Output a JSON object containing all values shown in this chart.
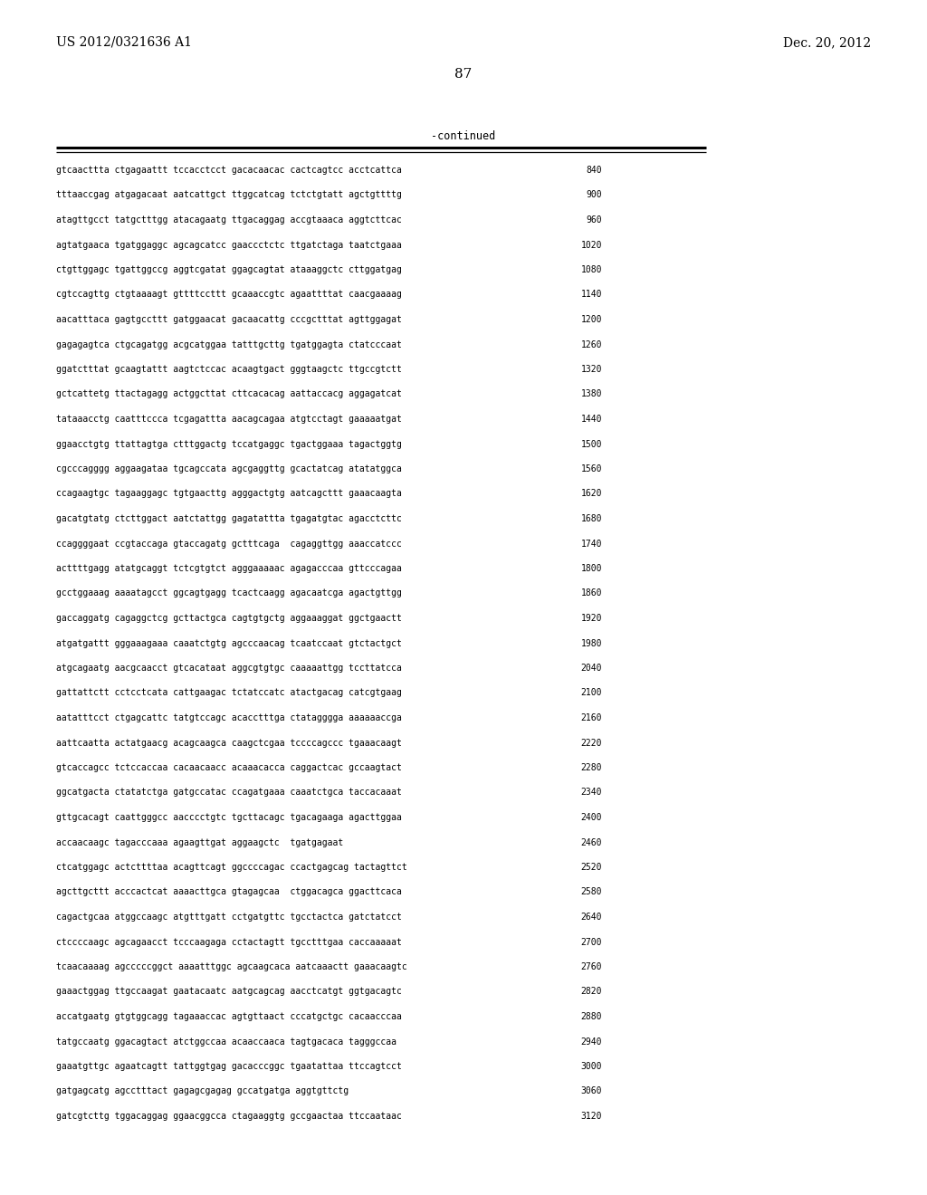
{
  "header_left": "US 2012/0321636 A1",
  "header_right": "Dec. 20, 2012",
  "page_number": "87",
  "continued_label": "-continued",
  "background_color": "#ffffff",
  "text_color": "#000000",
  "sequence_lines": [
    [
      "gtcaacttta ctgagaattt tccacctcct gacacaacac cactcagtcc acctcattca",
      "840"
    ],
    [
      "tttaaccgag atgagacaat aatcattgct ttggcatcag tctctgtatt agctgttttg",
      "900"
    ],
    [
      "atagttgcct tatgctttgg atacagaatg ttgacaggag accgtaaaca aggtcttcac",
      "960"
    ],
    [
      "agtatgaaca tgatggaggc agcagcatcc gaaccctctc ttgatctaga taatctgaaa",
      "1020"
    ],
    [
      "ctgttggagc tgattggccg aggtcgatat ggagcagtat ataaaggctc cttggatgag",
      "1080"
    ],
    [
      "cgtccagttg ctgtaaaagt gttttccttt gcaaaccgtc agaattttat caacgaaaag",
      "1140"
    ],
    [
      "aacatttaca gagtgccttt gatggaacat gacaacattg cccgctttat agttggagat",
      "1200"
    ],
    [
      "gagagagtca ctgcagatgg acgcatggaa tatttgcttg tgatggagta ctatcccaat",
      "1260"
    ],
    [
      "ggatctttat gcaagtattt aagtctccac acaagtgact gggtaagctc ttgccgtctt",
      "1320"
    ],
    [
      "gctcattetg ttactagagg actggcttat cttcacacag aattaccacg aggagatcat",
      "1380"
    ],
    [
      "tataaacctg caatttccca tcgagattta aacagcagaa atgtcctagt gaaaaatgat",
      "1440"
    ],
    [
      "ggaacctgtg ttattagtga ctttggactg tccatgaggc tgactggaaa tagactggtg",
      "1500"
    ],
    [
      "cgcccagggg aggaagataa tgcagccata agcgaggttg gcactatcag atatatggca",
      "1560"
    ],
    [
      "ccagaagtgc tagaaggagc tgtgaacttg agggactgtg aatcagcttt gaaacaagta",
      "1620"
    ],
    [
      "gacatgtatg ctcttggact aatctattgg gagatattta tgagatgtac agacctcttc",
      "1680"
    ],
    [
      "ccaggggaat ccgtaccaga gtaccagatg gctttcaga  cagaggttgg aaaccatccc",
      "1740"
    ],
    [
      "acttttgagg atatgcaggt tctcgtgtct agggaaaaac agagacccaa gttcccagaa",
      "1800"
    ],
    [
      "gcctggaaag aaaatagcct ggcagtgagg tcactcaagg agacaatcga agactgttgg",
      "1860"
    ],
    [
      "gaccaggatg cagaggctcg gcttactgca cagtgtgctg aggaaaggat ggctgaactt",
      "1920"
    ],
    [
      "atgatgattt gggaaagaaa caaatctgtg agcccaacag tcaatccaat gtctactgct",
      "1980"
    ],
    [
      "atgcagaatg aacgcaacct gtcacataat aggcgtgtgc caaaaattgg tccttatcca",
      "2040"
    ],
    [
      "gattattctt cctcctcata cattgaagac tctatccatc atactgacag catcgtgaag",
      "2100"
    ],
    [
      "aatatttcct ctgagcattc tatgtccagc acacctttga ctatagggga aaaaaaccga",
      "2160"
    ],
    [
      "aattcaatta actatgaacg acagcaagca caagctcgaa tccccagccc tgaaacaagt",
      "2220"
    ],
    [
      "gtcaccagcc tctccaccaa cacaacaacc acaaacacca caggactcac gccaagtact",
      "2280"
    ],
    [
      "ggcatgacta ctatatctga gatgccatac ccagatgaaa caaatctgca taccacaaat",
      "2340"
    ],
    [
      "gttgcacagt caattgggcc aacccctgtc tgcttacagc tgacagaaga agacttggaa",
      "2400"
    ],
    [
      "accaacaagc tagacccaaa agaagttgat aggaagctc  tgatgagaat",
      "2460"
    ],
    [
      "ctcatggagc actcttttaa acagttcagt ggccccagac ccactgagcag tactagttct",
      "2520"
    ],
    [
      "agcttgcttt acccactcat aaaacttgca gtagagcaa  ctggacagca ggacttcaca",
      "2580"
    ],
    [
      "cagactgcaa atggccaagc atgtttgatt cctgatgttc tgcctactca gatctatcct",
      "2640"
    ],
    [
      "ctccccaagc agcagaacct tcccaagaga cctactagtt tgcctttgaa caccaaaaat",
      "2700"
    ],
    [
      "tcaacaaaag agcccccggct aaaatttggc agcaagcaca aatcaaactt gaaacaagtc",
      "2760"
    ],
    [
      "gaaactggag ttgccaagat gaatacaatc aatgcagcag aacctcatgt ggtgacagtc",
      "2820"
    ],
    [
      "accatgaatg gtgtggcagg tagaaaccac agtgttaact cccatgctgc cacaacccaa",
      "2880"
    ],
    [
      "tatgccaatg ggacagtact atctggccaa acaaccaaca tagtgacaca tagggccaa",
      "2940"
    ],
    [
      "gaaatgttgc agaatcagtt tattggtgag gacacccggc tgaatattaa ttccagtcct",
      "3000"
    ],
    [
      "gatgagcatg agcctttact gagagcgagag gccatgatga aggtgttctg",
      "3060"
    ],
    [
      "gatcgtcttg tggacaggag ggaacggcca ctagaaggtg gccgaactaa ttccaataac",
      "3120"
    ]
  ]
}
